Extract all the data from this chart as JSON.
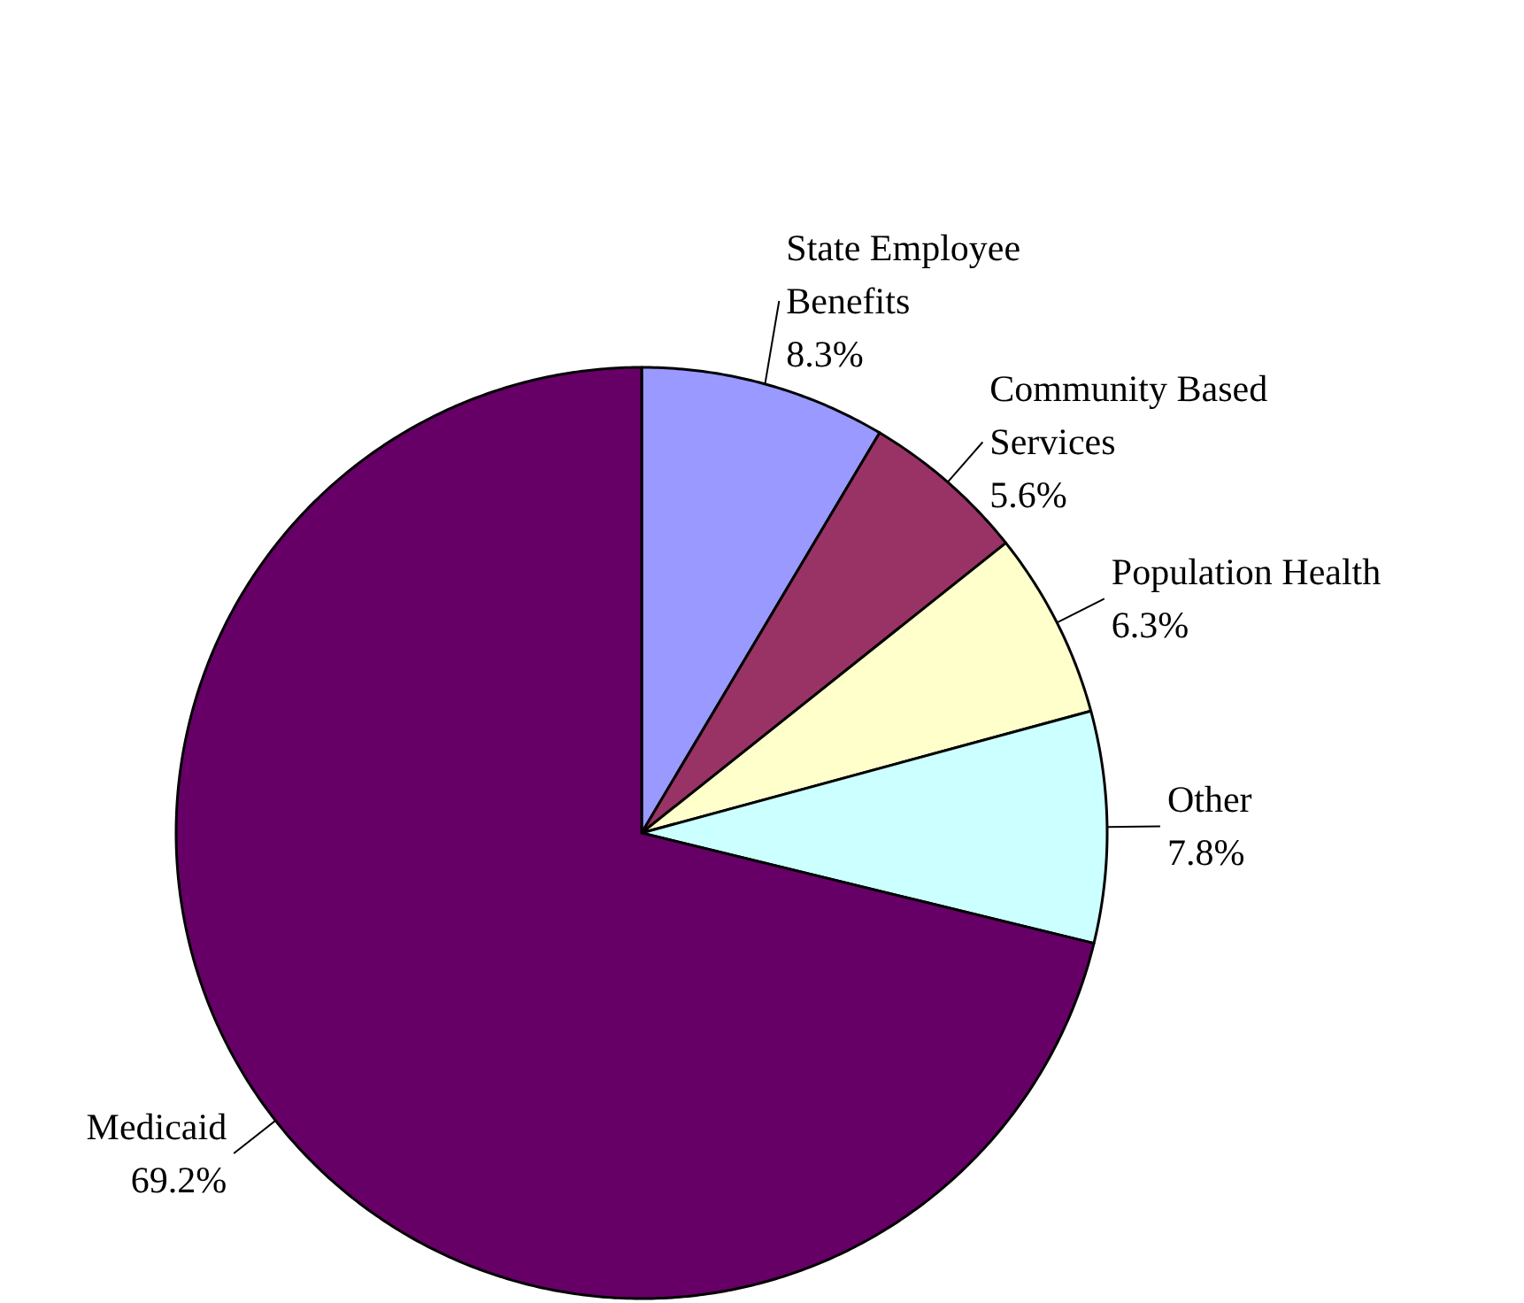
{
  "chart_data": {
    "type": "pie",
    "categories": [
      "State Employee Benefits",
      "Community Based Services",
      "Population Health",
      "Other",
      "Medicaid"
    ],
    "values": [
      8.3,
      5.6,
      6.3,
      7.8,
      69.2
    ],
    "colors": [
      "#9999ff",
      "#993366",
      "#ffffcc",
      "#ccffff",
      "#660066"
    ],
    "value_labels": [
      "8.3%",
      "5.6%",
      "6.3%",
      "7.8%",
      "69.2%"
    ]
  }
}
